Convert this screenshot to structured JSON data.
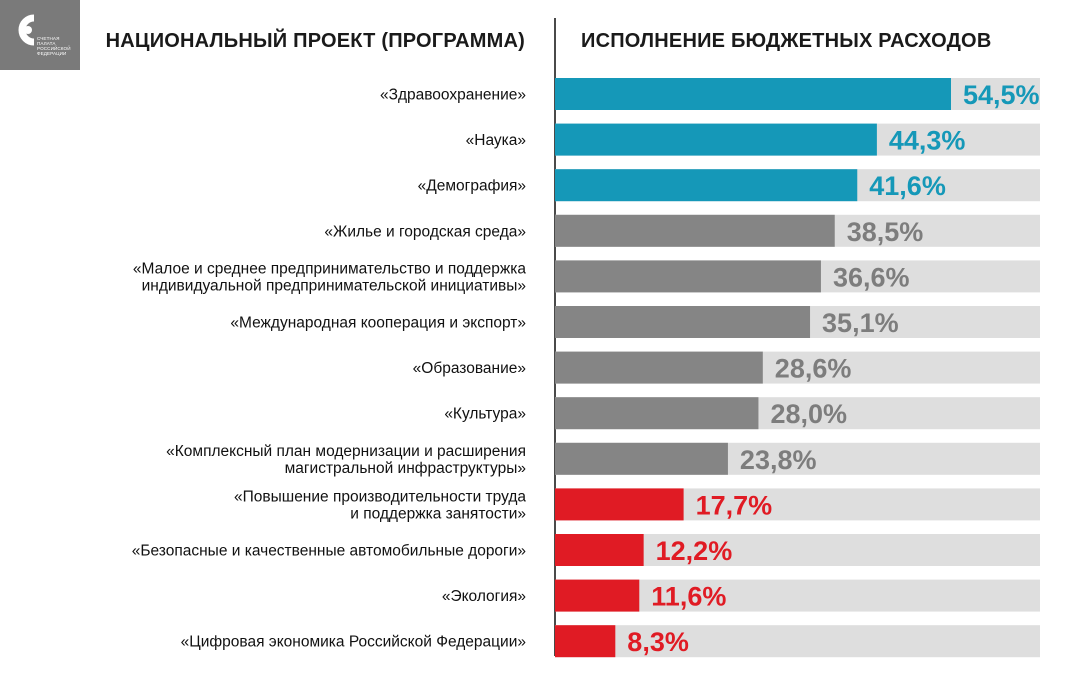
{
  "logo": {
    "lines": [
      "СЧЕТНАЯ",
      "ПАЛАТА",
      "РОССИЙСКОЙ",
      "ФЕДЕРАЦИИ"
    ]
  },
  "header": {
    "left": "НАЦИОНАЛЬНЫЙ ПРОЕКТ (ПРОГРАММА)",
    "right": "ИСПОЛНЕНИЕ БЮДЖЕТНЫХ РАСХОДОВ"
  },
  "colors": {
    "blue": "#1598b8",
    "gray": "#858585",
    "red": "#e01b24",
    "track": "#dedede",
    "gray_label": "#7d7d7d"
  },
  "chart_data": {
    "type": "bar",
    "orientation": "horizontal",
    "xlim": [
      0,
      100
    ],
    "value_unit": "%",
    "categories": [
      [
        "«Здравоохранение»"
      ],
      [
        "«Наука»"
      ],
      [
        "«Демография»"
      ],
      [
        "«Жилье и городская среда»"
      ],
      [
        "«Малое и среднее предпринимательство и поддержка",
        "индивидуальной предпринимательской инициативы»"
      ],
      [
        "«Международная кооперация и экспорт»"
      ],
      [
        "«Образование»"
      ],
      [
        "«Культура»"
      ],
      [
        "«Комплексный план модернизации и расширения",
        "магистральной инфраструктуры»"
      ],
      [
        "«Повышение производительности труда",
        "и поддержка занятости»"
      ],
      [
        "«Безопасные и качественные автомобильные дороги»"
      ],
      [
        "«Экология»"
      ],
      [
        "«Цифровая экономика Российской Федерации»"
      ]
    ],
    "values": [
      54.5,
      44.3,
      41.6,
      38.5,
      36.6,
      35.1,
      28.6,
      28.0,
      23.8,
      17.7,
      12.2,
      11.6,
      8.3
    ],
    "value_labels": [
      "54,5%",
      "44,3%",
      "41,6%",
      "38,5%",
      "36,6%",
      "35,1%",
      "28,6%",
      "28,0%",
      "23,8%",
      "17,7%",
      "12,2%",
      "11,6%",
      "8,3%"
    ],
    "groups": [
      "blue",
      "blue",
      "blue",
      "gray",
      "gray",
      "gray",
      "gray",
      "gray",
      "gray",
      "red",
      "red",
      "red",
      "red"
    ]
  }
}
